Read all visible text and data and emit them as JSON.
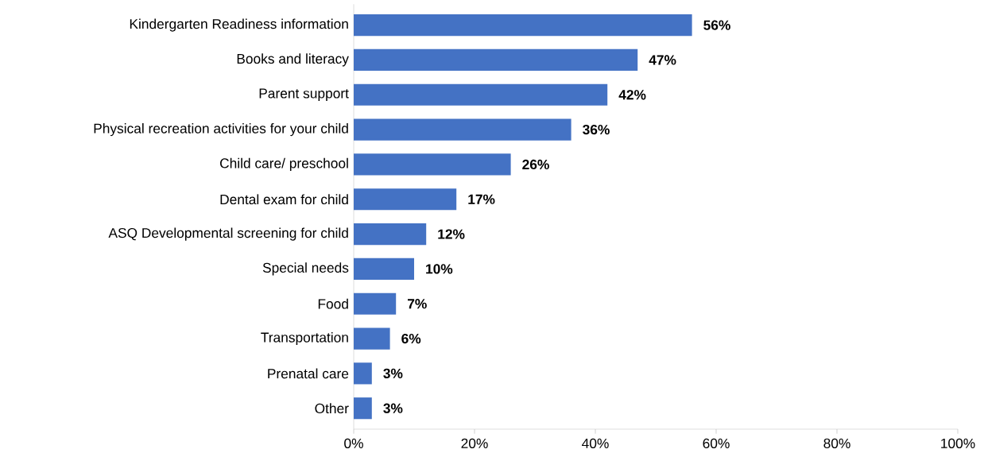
{
  "chart_data": {
    "type": "bar",
    "orientation": "horizontal",
    "color": "#4472c4",
    "categories": [
      "Kindergarten Readiness information",
      "Books and literacy",
      "Parent support",
      "Physical recreation activities for your child",
      "Child care/ preschool",
      "Dental exam for child",
      "ASQ Developmental screening for child",
      "Special needs",
      "Food",
      "Transportation",
      "Prenatal care",
      "Other"
    ],
    "values": [
      56,
      47,
      42,
      36,
      26,
      17,
      12,
      10,
      7,
      6,
      3,
      3
    ],
    "value_labels": [
      "56%",
      "47%",
      "42%",
      "36%",
      "26%",
      "17%",
      "12%",
      "10%",
      "7%",
      "6%",
      "3%",
      "3%"
    ],
    "xlim": [
      0,
      100
    ],
    "xticks": [
      {
        "value": 0,
        "label": "0%"
      },
      {
        "value": 20,
        "label": "20%"
      },
      {
        "value": 40,
        "label": "40%"
      },
      {
        "value": 60,
        "label": "60%"
      },
      {
        "value": 80,
        "label": "80%"
      },
      {
        "value": 100,
        "label": "100%"
      }
    ]
  }
}
